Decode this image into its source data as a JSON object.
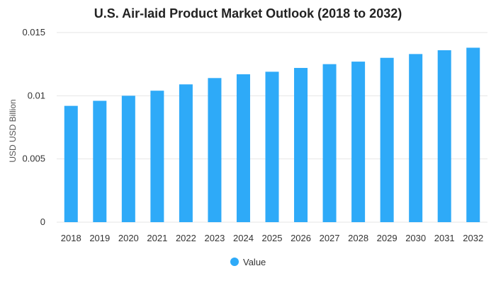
{
  "chart_data": {
    "type": "bar",
    "title": "U.S. Air-laid Product Market Outlook (2018 to 2032)",
    "xlabel": "",
    "ylabel": "USD USD Billion",
    "categories": [
      "2018",
      "2019",
      "2020",
      "2021",
      "2022",
      "2023",
      "2024",
      "2025",
      "2026",
      "2027",
      "2028",
      "2029",
      "2030",
      "2031",
      "2032"
    ],
    "series": [
      {
        "name": "Value",
        "values": [
          0.0092,
          0.0096,
          0.01,
          0.0104,
          0.0109,
          0.0114,
          0.0117,
          0.0119,
          0.0122,
          0.0125,
          0.0127,
          0.013,
          0.0133,
          0.0136,
          0.0138
        ]
      }
    ],
    "ylim": [
      0,
      0.015
    ],
    "yticks": [
      0,
      0.005,
      0.01,
      0.015
    ],
    "ytick_labels": [
      "0",
      "0.005",
      "0.01",
      "0.015"
    ],
    "grid": true,
    "legend": "bottom-center",
    "colors": {
      "bar": "#2eaaf8",
      "grid": "#e6e6e6"
    }
  }
}
